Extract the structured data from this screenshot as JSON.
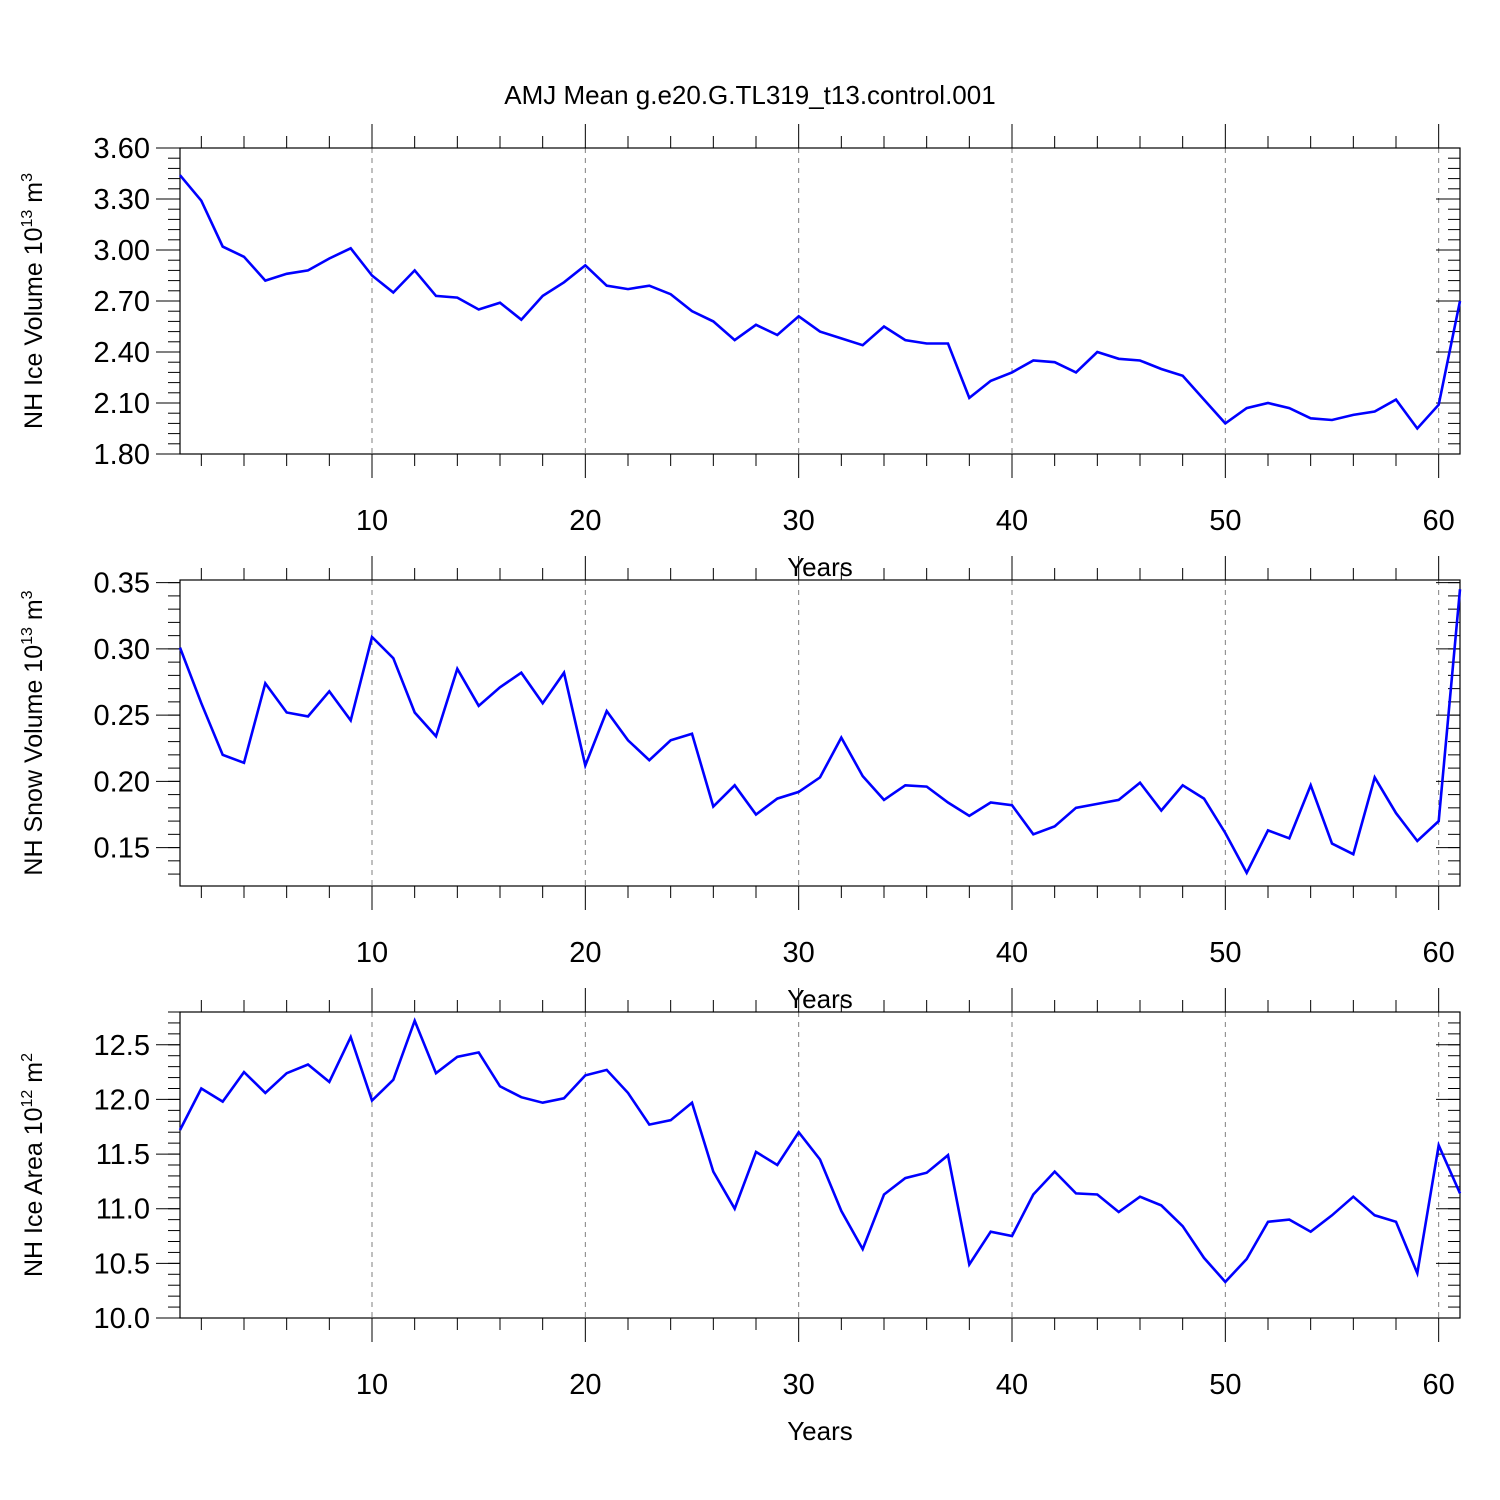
{
  "title": "AMJ Mean g.e20.G.TL319_t13.control.001",
  "chart_data": [
    {
      "type": "line",
      "xlabel": "Years",
      "ylabel": {
        "prefix": "NH Ice Volume 10",
        "exp1": "13",
        "mid": " m",
        "exp2": "3"
      },
      "xlim": [
        1,
        61
      ],
      "ylim": [
        1.8,
        3.6
      ],
      "xticks": [
        10,
        20,
        30,
        40,
        50,
        60
      ],
      "yticks": [
        1.8,
        2.1,
        2.4,
        2.7,
        3.0,
        3.3,
        3.6
      ],
      "ytick_labels": [
        "1.80",
        "2.10",
        "2.40",
        "2.70",
        "3.00",
        "3.30",
        "3.60"
      ],
      "yminor_step": 0.06,
      "grid": "dashed vertical at major x ticks",
      "color": "#0000ff",
      "series": [
        {
          "x": [
            1,
            2,
            3,
            4,
            5,
            6,
            7,
            8,
            9,
            10,
            11,
            12,
            13,
            14,
            15,
            16,
            17,
            18,
            19,
            20,
            21,
            22,
            23,
            24,
            25,
            26,
            27,
            28,
            29,
            30,
            31,
            32,
            33,
            34,
            35,
            36,
            37,
            38,
            39,
            40,
            41,
            42,
            43,
            44,
            45,
            46,
            47,
            48,
            49,
            50,
            51,
            52,
            53,
            54,
            55,
            56,
            57,
            58,
            59,
            60,
            61
          ],
          "values": [
            3.44,
            3.29,
            3.02,
            2.96,
            2.82,
            2.86,
            2.88,
            2.95,
            3.01,
            2.85,
            2.75,
            2.88,
            2.73,
            2.72,
            2.65,
            2.69,
            2.59,
            2.73,
            2.81,
            2.91,
            2.79,
            2.77,
            2.79,
            2.74,
            2.64,
            2.58,
            2.47,
            2.56,
            2.5,
            2.61,
            2.52,
            2.48,
            2.44,
            2.55,
            2.47,
            2.45,
            2.45,
            2.13,
            2.23,
            2.28,
            2.35,
            2.34,
            2.28,
            2.4,
            2.36,
            2.35,
            2.3,
            2.26,
            2.12,
            1.98,
            2.07,
            2.1,
            2.07,
            2.01,
            2.0,
            2.03,
            2.05,
            2.12,
            1.95,
            2.09,
            2.7
          ]
        }
      ]
    },
    {
      "type": "line",
      "xlabel": "Years",
      "ylabel": {
        "prefix": "NH Snow Volume 10",
        "exp1": "13",
        "mid": " m",
        "exp2": "3"
      },
      "xlim": [
        1,
        61
      ],
      "ylim": [
        0.121,
        0.352
      ],
      "xticks": [
        10,
        20,
        30,
        40,
        50,
        60
      ],
      "yticks": [
        0.15,
        0.2,
        0.25,
        0.3,
        0.35
      ],
      "ytick_labels": [
        "0.15",
        "0.20",
        "0.25",
        "0.30",
        "0.35"
      ],
      "yminor_step": 0.01,
      "grid": "dashed vertical at major x ticks",
      "color": "#0000ff",
      "series": [
        {
          "x": [
            1,
            2,
            3,
            4,
            5,
            6,
            7,
            8,
            9,
            10,
            11,
            12,
            13,
            14,
            15,
            16,
            17,
            18,
            19,
            20,
            21,
            22,
            23,
            24,
            25,
            26,
            27,
            28,
            29,
            30,
            31,
            32,
            33,
            34,
            35,
            36,
            37,
            38,
            39,
            40,
            41,
            42,
            43,
            44,
            45,
            46,
            47,
            48,
            49,
            50,
            51,
            52,
            53,
            54,
            55,
            56,
            57,
            58,
            59,
            60,
            61
          ],
          "values": [
            0.301,
            0.259,
            0.22,
            0.214,
            0.274,
            0.252,
            0.249,
            0.268,
            0.246,
            0.309,
            0.293,
            0.252,
            0.234,
            0.285,
            0.257,
            0.271,
            0.282,
            0.259,
            0.282,
            0.212,
            0.253,
            0.231,
            0.216,
            0.231,
            0.236,
            0.181,
            0.197,
            0.175,
            0.187,
            0.192,
            0.203,
            0.233,
            0.204,
            0.186,
            0.197,
            0.196,
            0.184,
            0.174,
            0.184,
            0.182,
            0.16,
            0.166,
            0.18,
            0.183,
            0.186,
            0.199,
            0.178,
            0.197,
            0.187,
            0.161,
            0.131,
            0.163,
            0.157,
            0.197,
            0.153,
            0.145,
            0.203,
            0.176,
            0.155,
            0.17,
            0.345
          ]
        }
      ]
    },
    {
      "type": "line",
      "xlabel": "Years",
      "ylabel": {
        "prefix": "NH Ice Area 10",
        "exp1": "12",
        "mid": " m",
        "exp2": "2"
      },
      "xlim": [
        1,
        61
      ],
      "ylim": [
        10.0,
        12.8
      ],
      "xticks": [
        10,
        20,
        30,
        40,
        50,
        60
      ],
      "yticks": [
        10.0,
        10.5,
        11.0,
        11.5,
        12.0,
        12.5
      ],
      "ytick_labels": [
        "10.0",
        "10.5",
        "11.0",
        "11.5",
        "12.0",
        "12.5"
      ],
      "yminor_step": 0.1,
      "grid": "dashed vertical at major x ticks",
      "color": "#0000ff",
      "series": [
        {
          "x": [
            1,
            2,
            3,
            4,
            5,
            6,
            7,
            8,
            9,
            10,
            11,
            12,
            13,
            14,
            15,
            16,
            17,
            18,
            19,
            20,
            21,
            22,
            23,
            24,
            25,
            26,
            27,
            28,
            29,
            30,
            31,
            32,
            33,
            34,
            35,
            36,
            37,
            38,
            39,
            40,
            41,
            42,
            43,
            44,
            45,
            46,
            47,
            48,
            49,
            50,
            51,
            52,
            53,
            54,
            55,
            56,
            57,
            58,
            59,
            60,
            61
          ],
          "values": [
            11.72,
            12.1,
            11.98,
            12.25,
            12.06,
            12.24,
            12.32,
            12.16,
            12.57,
            11.99,
            12.18,
            12.72,
            12.24,
            12.39,
            12.43,
            12.12,
            12.02,
            11.97,
            12.01,
            12.22,
            12.27,
            12.06,
            11.77,
            11.81,
            11.97,
            11.34,
            11.0,
            11.52,
            11.4,
            11.7,
            11.45,
            10.98,
            10.63,
            11.13,
            11.28,
            11.33,
            11.49,
            10.49,
            10.79,
            10.75,
            11.13,
            11.34,
            11.14,
            11.13,
            10.97,
            11.11,
            11.03,
            10.84,
            10.55,
            10.33,
            10.54,
            10.88,
            10.9,
            10.79,
            10.94,
            11.11,
            10.94,
            10.88,
            10.41,
            11.58,
            11.14
          ]
        }
      ]
    }
  ]
}
